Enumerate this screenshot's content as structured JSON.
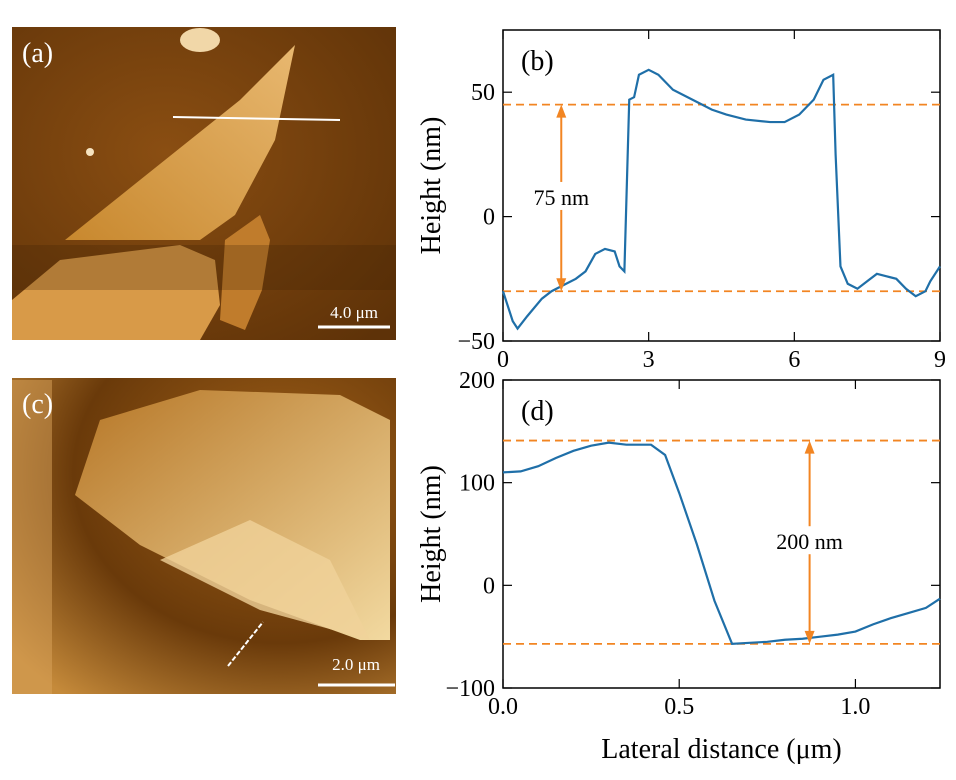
{
  "images": [
    {
      "label": "(a)",
      "scale_bar": "4.0 μm"
    },
    {
      "label": "(c)",
      "scale_bar": "2.0 μm"
    }
  ],
  "chart_data": [
    {
      "type": "line",
      "panel_label": "(b)",
      "ylabel": "Height (nm)",
      "x": [
        0,
        0.2,
        0.3,
        0.5,
        0.8,
        1.0,
        1.3,
        1.5,
        1.7,
        1.9,
        2.1,
        2.3,
        2.4,
        2.5,
        2.6,
        2.7,
        2.8,
        3.0,
        3.2,
        3.5,
        4.0,
        4.3,
        4.6,
        5.0,
        5.5,
        5.8,
        6.1,
        6.4,
        6.6,
        6.8,
        6.85,
        6.95,
        7.1,
        7.3,
        7.5,
        7.7,
        7.9,
        8.1,
        8.3,
        8.5,
        8.7,
        8.8,
        9.0
      ],
      "values": [
        -30,
        -42,
        -45,
        -40,
        -33,
        -30,
        -27,
        -25,
        -22,
        -15,
        -13,
        -14,
        -20,
        -22,
        47,
        48,
        57,
        59,
        57,
        51,
        46,
        43,
        41,
        39,
        38,
        38,
        41,
        47,
        55,
        57,
        25,
        -20,
        -27,
        -29,
        -26,
        -23,
        -24,
        -25,
        -29,
        -32,
        -30,
        -26,
        -20
      ],
      "color": "#1f6fa8",
      "xlim": [
        0,
        9
      ],
      "xticks": [
        0,
        3,
        6,
        9
      ],
      "ylim": [
        -50,
        75
      ],
      "yticks": [
        {
          "value": -50,
          "label": "−50"
        },
        0,
        50
      ],
      "hlines": [
        {
          "value": 45,
          "color": "#f28522"
        },
        {
          "value": -30,
          "color": "#f28522"
        }
      ],
      "annotation": {
        "text": "75 nm",
        "x": 1.2
      }
    },
    {
      "type": "line",
      "panel_label": "(d)",
      "ylabel": "Height (nm)",
      "xlabel": "Lateral distance (μm)",
      "x": [
        0,
        0.05,
        0.1,
        0.15,
        0.2,
        0.25,
        0.3,
        0.35,
        0.42,
        0.46,
        0.5,
        0.55,
        0.6,
        0.65,
        0.7,
        0.75,
        0.8,
        0.85,
        0.9,
        0.95,
        1.0,
        1.05,
        1.1,
        1.15,
        1.2,
        1.24
      ],
      "values": [
        110,
        111,
        116,
        124,
        131,
        136,
        139,
        137,
        137,
        127,
        90,
        40,
        -15,
        -57,
        -56,
        -55,
        -53,
        -52,
        -50,
        -48,
        -45,
        -38,
        -32,
        -27,
        -22,
        -13
      ],
      "color": "#1f6fa8",
      "xlim": [
        0,
        1.24
      ],
      "xticks": [
        {
          "value": 0,
          "label": "0.0"
        },
        {
          "value": 0.5,
          "label": "0.5"
        },
        {
          "value": 1,
          "label": "1.0"
        }
      ],
      "ylim": [
        -100,
        200
      ],
      "yticks": [
        {
          "value": -100,
          "label": "−100"
        },
        0,
        100,
        200
      ],
      "hlines": [
        {
          "value": 141,
          "color": "#f28522"
        },
        {
          "value": -57,
          "color": "#f28522"
        }
      ],
      "annotation": {
        "text": "200 nm",
        "x": 0.87
      }
    }
  ]
}
